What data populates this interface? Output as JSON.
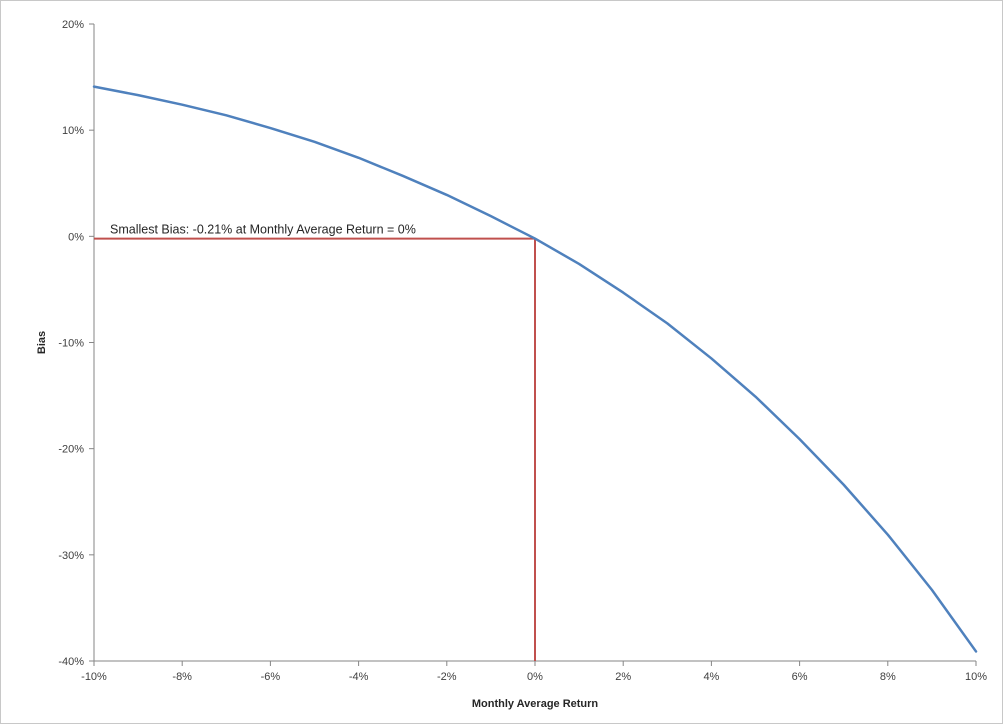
{
  "chart_data": {
    "type": "line",
    "title": "",
    "xlabel": "Monthly Average Return",
    "ylabel": "Bias",
    "xlim": [
      -10,
      10
    ],
    "ylim": [
      -40,
      20
    ],
    "x_ticks": [
      -10,
      -8,
      -6,
      -4,
      -2,
      0,
      2,
      4,
      6,
      8,
      10
    ],
    "x_tick_labels": [
      "-10%",
      "-8%",
      "-6%",
      "-4%",
      "-2%",
      "0%",
      "2%",
      "4%",
      "6%",
      "8%",
      "10%"
    ],
    "y_ticks": [
      20,
      10,
      0,
      -10,
      -20,
      -30,
      -40
    ],
    "y_tick_labels": [
      "20%",
      "10%",
      "0%",
      "-10%",
      "-20%",
      "-30%",
      "-40%"
    ],
    "grid": false,
    "legend": "none",
    "series": [
      {
        "color": "#4f81bd",
        "x": [
          -10,
          -9,
          -8,
          -7,
          -6,
          -5,
          -4,
          -3,
          -2,
          -1,
          0,
          1,
          2,
          3,
          4,
          5,
          6,
          7,
          8,
          9,
          10
        ],
        "y": [
          14.1,
          13.3,
          12.4,
          11.4,
          10.2,
          8.9,
          7.4,
          5.7,
          3.9,
          1.9,
          -0.21,
          -2.6,
          -5.3,
          -8.2,
          -11.5,
          -15.1,
          -19.1,
          -23.4,
          -28.1,
          -33.3,
          -39.1
        ]
      }
    ],
    "annotation": {
      "text": "Smallest Bias: -0.21% at Monthly Average Return = 0%",
      "x": 0,
      "y": -0.21,
      "color": "#c0504d"
    }
  }
}
